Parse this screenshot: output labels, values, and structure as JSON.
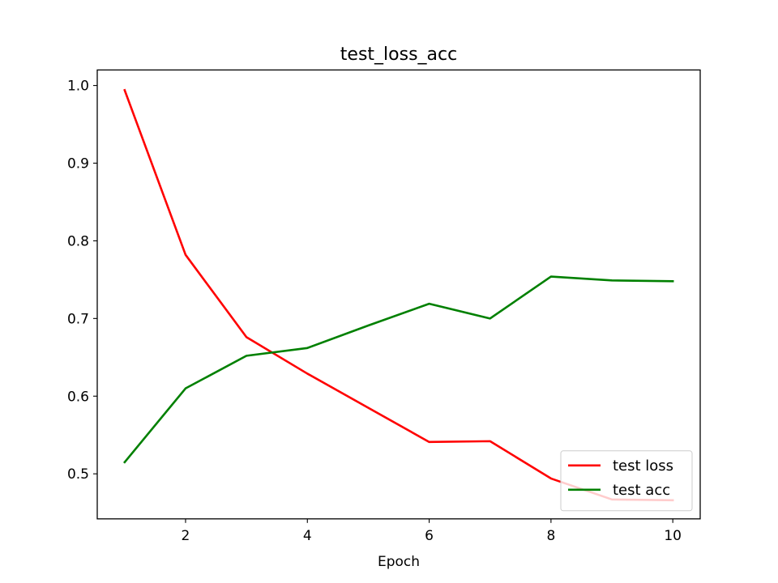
{
  "chart_data": {
    "type": "line",
    "title": "test_loss_acc",
    "xlabel": "Epoch",
    "ylabel": "",
    "x": [
      1,
      2,
      3,
      4,
      5,
      6,
      7,
      8,
      9,
      10
    ],
    "xlim": [
      0.55,
      10.45
    ],
    "ylim": [
      0.442,
      1.02
    ],
    "xticks": [
      2,
      4,
      6,
      8,
      10
    ],
    "yticks": [
      0.5,
      0.6,
      0.7,
      0.8,
      0.9,
      1.0
    ],
    "xtick_labels": [
      "2",
      "4",
      "6",
      "8",
      "10"
    ],
    "ytick_labels": [
      "0.5",
      "0.6",
      "0.7",
      "0.8",
      "0.9",
      "1.0"
    ],
    "grid": false,
    "legend_position": "lower-right",
    "series": [
      {
        "name": "test loss",
        "color": "#ff0000",
        "values": [
          0.994,
          0.782,
          0.676,
          0.629,
          0.585,
          0.541,
          0.542,
          0.494,
          0.467,
          0.466
        ]
      },
      {
        "name": "test acc",
        "color": "#008000",
        "values": [
          0.515,
          0.61,
          0.652,
          0.662,
          0.691,
          0.719,
          0.7,
          0.754,
          0.749,
          0.748
        ]
      }
    ]
  }
}
